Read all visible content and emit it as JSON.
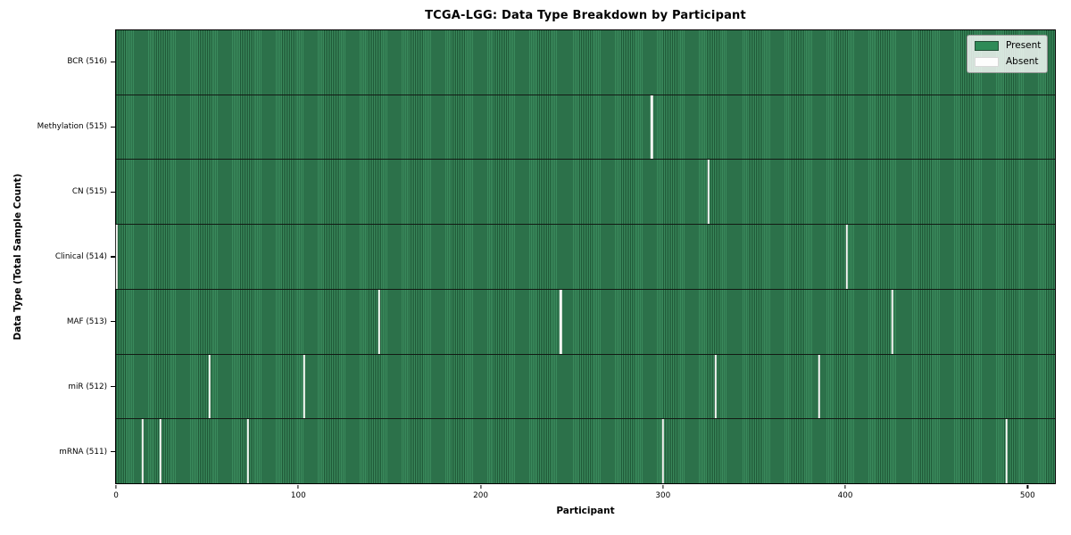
{
  "chart_data": {
    "type": "heatmap",
    "title": "TCGA-LGG: Data Type Breakdown by Participant",
    "xlabel": "Participant",
    "ylabel": "Data Type (Total Sample Count)",
    "total_participants": 516,
    "x_ticks": [
      0,
      100,
      200,
      300,
      400,
      500
    ],
    "xlim": [
      -0.5,
      515.5
    ],
    "grid": false,
    "legend_position": "upper right",
    "legend": {
      "present_label": "Present",
      "absent_label": "Absent"
    },
    "colors": {
      "present": "#2e8b57",
      "present_stripe_dark": "#1f5837",
      "present_stripe_light": "#3a8a5c",
      "absent": "#ffffff",
      "row_separator": "#121a14",
      "plot_border": "#000000"
    },
    "rows": [
      {
        "data_type": "BCR",
        "label": "BCR (516)",
        "sample_count": 516,
        "absent_participants": []
      },
      {
        "data_type": "Methylation",
        "label": "Methylation (515)",
        "sample_count": 515,
        "absent_participants": [
          294
        ]
      },
      {
        "data_type": "CN",
        "label": "CN (515)",
        "sample_count": 515,
        "absent_participants": [
          325
        ]
      },
      {
        "data_type": "Clinical",
        "label": "Clinical (514)",
        "sample_count": 514,
        "absent_participants": [
          0,
          401
        ]
      },
      {
        "data_type": "MAF",
        "label": "MAF (513)",
        "sample_count": 513,
        "absent_participants": [
          144,
          244,
          426
        ]
      },
      {
        "data_type": "miR",
        "label": "miR (512)",
        "sample_count": 512,
        "absent_participants": [
          51,
          103,
          329,
          386
        ]
      },
      {
        "data_type": "mRNA",
        "label": "mRNA (511)",
        "sample_count": 511,
        "absent_participants": [
          14,
          24,
          72,
          300,
          489
        ]
      }
    ]
  }
}
